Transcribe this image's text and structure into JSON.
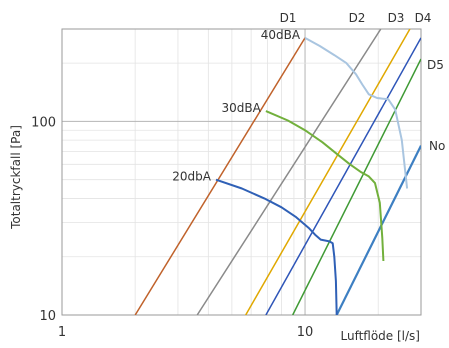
{
  "chart_data": {
    "type": "line",
    "title": "",
    "xlabel": "Luftflöde [l/s]",
    "ylabel": "Totaltryckfall [Pa]",
    "x_scale": "log",
    "y_scale": "log",
    "xlim": [
      1,
      30
    ],
    "ylim": [
      10,
      300
    ],
    "x_ticks": [
      {
        "value": 1,
        "label": "1"
      },
      {
        "value": 10,
        "label": "10"
      }
    ],
    "y_ticks": [
      {
        "value": 10,
        "label": "10"
      },
      {
        "value": 100,
        "label": "100"
      }
    ],
    "grid": true,
    "damper_lines": [
      {
        "name": "D1",
        "color": "#c0622b",
        "points": [
          [
            2.0,
            10
          ],
          [
            10.0,
            270
          ]
        ]
      },
      {
        "name": "D2",
        "color": "#8a8a8a",
        "points": [
          [
            3.6,
            10
          ],
          [
            20.5,
            300
          ]
        ]
      },
      {
        "name": "D3",
        "color": "#e0a800",
        "points": [
          [
            5.7,
            10
          ],
          [
            27.0,
            300
          ]
        ]
      },
      {
        "name": "D4",
        "color": "#2e55b8",
        "points": [
          [
            6.9,
            10
          ],
          [
            30.0,
            270
          ]
        ]
      },
      {
        "name": "D5",
        "color": "#3f9a34",
        "points": [
          [
            8.9,
            10
          ],
          [
            30.0,
            210
          ]
        ]
      },
      {
        "name": "No",
        "color": "#3d7fc2",
        "points": [
          [
            13.5,
            10
          ],
          [
            30.0,
            75
          ]
        ]
      }
    ],
    "sound_curves": [
      {
        "name": "40dBA",
        "color": "#a9c5e0",
        "points": [
          [
            10.0,
            270
          ],
          [
            11.5,
            245
          ],
          [
            13.2,
            220
          ],
          [
            14.8,
            200
          ],
          [
            16.2,
            175
          ],
          [
            17.2,
            155
          ],
          [
            18.3,
            138
          ],
          [
            19.8,
            132
          ],
          [
            22.0,
            130
          ],
          [
            23.5,
            115
          ],
          [
            25.0,
            80
          ],
          [
            26.3,
            45
          ]
        ]
      },
      {
        "name": "30dBA",
        "color": "#72b03c",
        "points": [
          [
            6.9,
            113
          ],
          [
            8.5,
            101
          ],
          [
            10.0,
            90
          ],
          [
            11.8,
            78
          ],
          [
            13.5,
            68
          ],
          [
            15.3,
            60
          ],
          [
            16.9,
            55
          ],
          [
            18.3,
            52
          ],
          [
            19.4,
            48
          ],
          [
            20.3,
            38
          ],
          [
            20.8,
            25
          ],
          [
            21.0,
            19
          ]
        ]
      },
      {
        "name": "20dbA",
        "color": "#2f60b6",
        "points": [
          [
            4.3,
            50
          ],
          [
            5.5,
            45
          ],
          [
            6.8,
            40
          ],
          [
            8.0,
            36
          ],
          [
            9.2,
            32
          ],
          [
            10.4,
            28
          ],
          [
            11.0,
            26
          ],
          [
            11.6,
            24.5
          ],
          [
            12.6,
            24
          ],
          [
            13.0,
            23.5
          ],
          [
            13.2,
            20
          ],
          [
            13.4,
            15
          ],
          [
            13.5,
            10
          ]
        ]
      }
    ]
  }
}
